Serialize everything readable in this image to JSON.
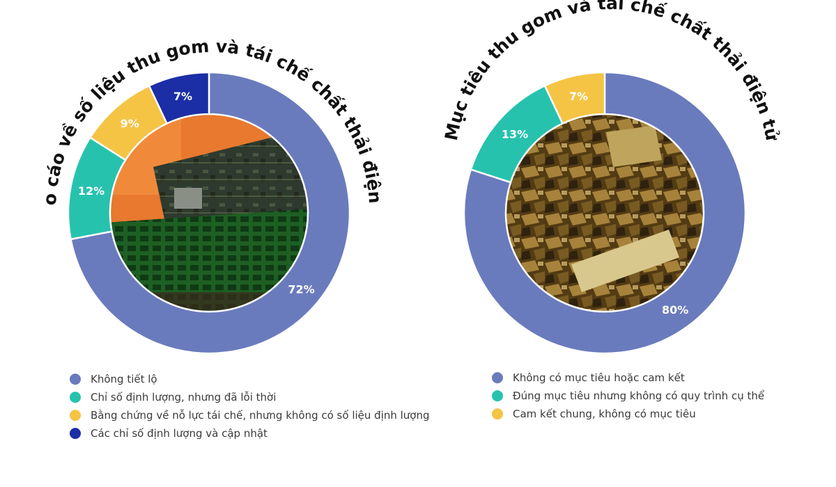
{
  "colors": {
    "purple": "#6a7bbd",
    "teal": "#27c2ae",
    "yellow": "#f5c445",
    "navy": "#1c2ea6"
  },
  "chart_data": [
    {
      "type": "pie",
      "title": "Báo cáo về số liệu thu gom và tái chế chất thải điện tử",
      "slices": [
        {
          "label": "Không tiết lộ",
          "value": 72,
          "value_label": "72%",
          "color": "#6a7bbd"
        },
        {
          "label": "Chỉ số định lượng, nhưng đã lỗi thời",
          "value": 12,
          "value_label": "12%",
          "color": "#27c2ae"
        },
        {
          "label": "Bằng chứng về nỗ lực tái chế, nhưng không có số liệu định lượng",
          "value": 9,
          "value_label": "9%",
          "color": "#f5c445"
        },
        {
          "label": "Các chỉ số định lượng và cập nhật",
          "value": 7,
          "value_label": "7%",
          "color": "#1c2ea6"
        }
      ],
      "legend_position": "bottom"
    },
    {
      "type": "pie",
      "title": "Mục tiêu thu gom và tái chế chất thải điện tử",
      "slices": [
        {
          "label": "Không có mục tiêu hoặc cam kết",
          "value": 80,
          "value_label": "80%",
          "color": "#6a7bbd"
        },
        {
          "label": "Đúng mục tiêu nhưng không có quy trình cụ thể",
          "value": 13,
          "value_label": "13%",
          "color": "#27c2ae"
        },
        {
          "label": "Cam kết chung, không có mục tiêu",
          "value": 7,
          "value_label": "7%",
          "color": "#f5c445"
        }
      ],
      "legend_position": "bottom"
    }
  ]
}
